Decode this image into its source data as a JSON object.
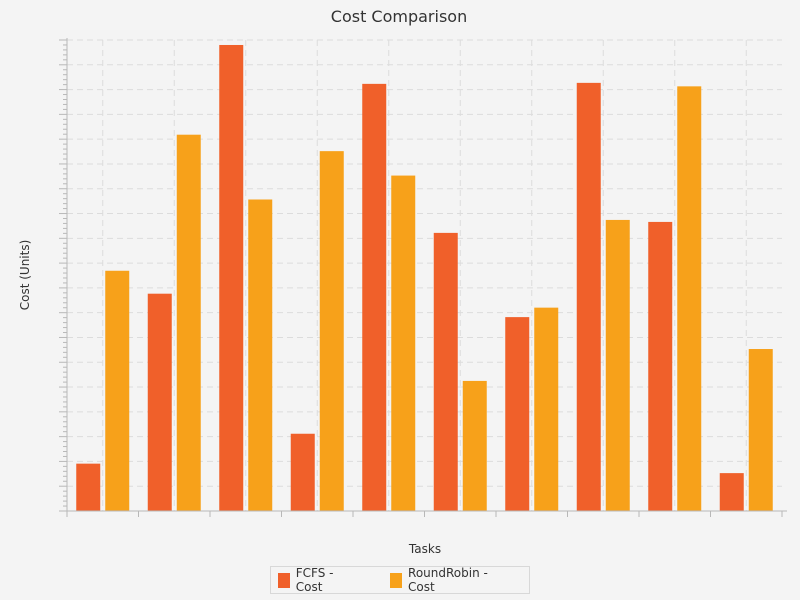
{
  "chart_data": {
    "type": "bar",
    "title": "Cost Comparison",
    "xlabel": "Tasks",
    "ylabel": "Cost (Units)",
    "categories": [
      "",
      "",
      "",
      "",
      "",
      "",
      "",
      "",
      "",
      ""
    ],
    "series": [
      {
        "name": "FCFS - Cost",
        "color": "#f0602a",
        "values": [
          9.5,
          43.6,
          93.5,
          15.5,
          85.7,
          55.8,
          38.9,
          85.9,
          58.0,
          7.6
        ]
      },
      {
        "name": "RoundRobin - Cost",
        "color": "#f7a11a",
        "values": [
          48.2,
          75.5,
          62.5,
          72.2,
          67.3,
          26.1,
          40.8,
          58.4,
          85.2,
          32.5
        ]
      }
    ],
    "ylim": [
      0,
      94.5
    ],
    "grid": true,
    "legend": "bottom-center"
  }
}
